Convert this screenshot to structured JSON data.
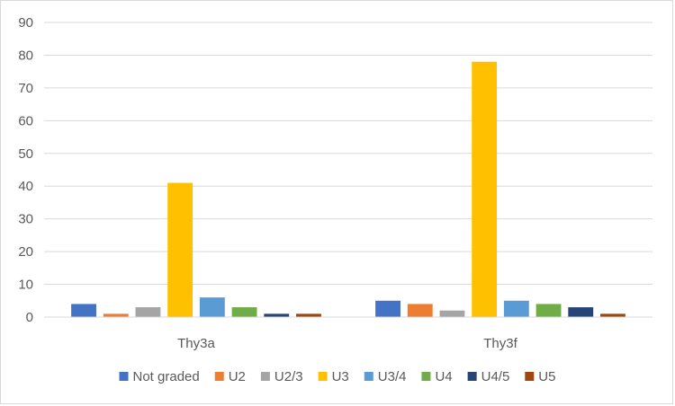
{
  "chart_data": {
    "type": "bar",
    "title": "",
    "xlabel": "",
    "ylabel": "",
    "categories": [
      "Thy3a",
      "Thy3f"
    ],
    "ylim": [
      0,
      90
    ],
    "yticks": [
      0,
      10,
      20,
      30,
      40,
      50,
      60,
      70,
      80,
      90
    ],
    "grid": true,
    "legend_position": "bottom",
    "series": [
      {
        "name": "Not graded",
        "color": "#4472C4",
        "values": [
          4,
          5
        ]
      },
      {
        "name": "U2",
        "color": "#ED7D31",
        "values": [
          1,
          4
        ]
      },
      {
        "name": "U2/3",
        "color": "#A5A5A5",
        "values": [
          3,
          2
        ]
      },
      {
        "name": "U3",
        "color": "#FFC000",
        "values": [
          41,
          78
        ]
      },
      {
        "name": "U3/4",
        "color": "#5B9BD5",
        "values": [
          6,
          5
        ]
      },
      {
        "name": "U4",
        "color": "#70AD47",
        "values": [
          3,
          4
        ]
      },
      {
        "name": "U4/5",
        "color": "#264478",
        "values": [
          1,
          3
        ]
      },
      {
        "name": "U5",
        "color": "#9E480E",
        "values": [
          1,
          1
        ]
      }
    ]
  }
}
